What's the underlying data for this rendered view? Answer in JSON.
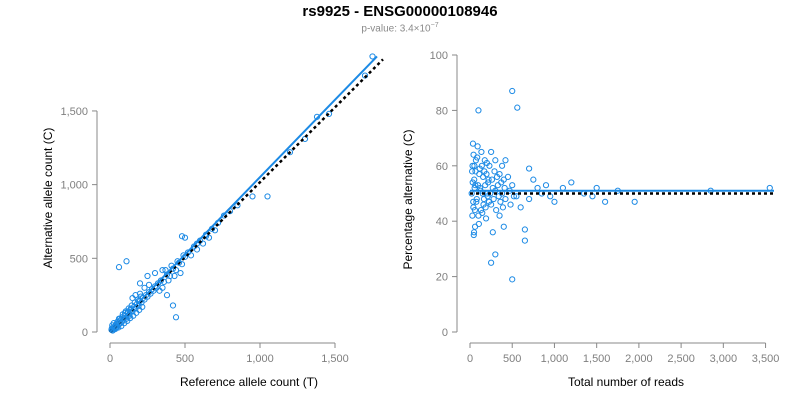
{
  "figure": {
    "title": "rs9925 - ENSG00000108946",
    "pvalue_prefix": "p-value: 3.4×10",
    "pvalue_exp": "−7"
  },
  "colors": {
    "points": "#1c8ae5",
    "fit_line": "#1c8ae5",
    "reference_line": "#000000",
    "axis": "#888888",
    "tick_text": "#7f7f7f",
    "title": "#000000",
    "subtitle": "#8a8a8a"
  },
  "chart_data": [
    {
      "type": "scatter",
      "title": "",
      "xlabel": "Reference allele count (T)",
      "ylabel": "Alternative allele count (C)",
      "xlim": [
        0,
        1800
      ],
      "ylim": [
        0,
        1900
      ],
      "xticks": [
        0,
        500,
        1000,
        1500
      ],
      "xtick_labels": [
        "0",
        "500",
        "1,000",
        "1,500"
      ],
      "yticks": [
        0,
        500,
        1000,
        1500
      ],
      "ytick_labels": [
        "0",
        "500",
        "1,000",
        "1,500"
      ],
      "grid": false,
      "fit_line": [
        [
          0,
          0
        ],
        [
          1780,
          1870
        ]
      ],
      "reference_line": [
        [
          0,
          0
        ],
        [
          1820,
          1850
        ]
      ],
      "points": [
        [
          20,
          20
        ],
        [
          30,
          35
        ],
        [
          40,
          28
        ],
        [
          45,
          50
        ],
        [
          60,
          55
        ],
        [
          70,
          80
        ],
        [
          80,
          70
        ],
        [
          90,
          95
        ],
        [
          100,
          110
        ],
        [
          110,
          100
        ],
        [
          120,
          130
        ],
        [
          130,
          120
        ],
        [
          140,
          150
        ],
        [
          150,
          140
        ],
        [
          160,
          170
        ],
        [
          170,
          160
        ],
        [
          180,
          190
        ],
        [
          190,
          175
        ],
        [
          200,
          210
        ],
        [
          210,
          200
        ],
        [
          220,
          230
        ],
        [
          230,
          220
        ],
        [
          240,
          250
        ],
        [
          250,
          240
        ],
        [
          260,
          270
        ],
        [
          270,
          260
        ],
        [
          280,
          290
        ],
        [
          290,
          280
        ],
        [
          300,
          310
        ],
        [
          310,
          300
        ],
        [
          15,
          45
        ],
        [
          25,
          60
        ],
        [
          35,
          20
        ],
        [
          55,
          30
        ],
        [
          65,
          90
        ],
        [
          75,
          40
        ],
        [
          85,
          120
        ],
        [
          95,
          60
        ],
        [
          105,
          140
        ],
        [
          115,
          75
        ],
        [
          125,
          160
        ],
        [
          135,
          95
        ],
        [
          145,
          180
        ],
        [
          155,
          110
        ],
        [
          165,
          200
        ],
        [
          175,
          130
        ],
        [
          185,
          220
        ],
        [
          195,
          150
        ],
        [
          205,
          240
        ],
        [
          215,
          170
        ],
        [
          50,
          70
        ],
        [
          60,
          90
        ],
        [
          70,
          60
        ],
        [
          80,
          100
        ],
        [
          90,
          85
        ],
        [
          100,
          130
        ],
        [
          110,
          90
        ],
        [
          120,
          140
        ],
        [
          130,
          110
        ],
        [
          140,
          160
        ],
        [
          10,
          15
        ],
        [
          12,
          25
        ],
        [
          18,
          10
        ],
        [
          22,
          30
        ],
        [
          28,
          18
        ],
        [
          33,
          40
        ],
        [
          38,
          26
        ],
        [
          42,
          55
        ],
        [
          48,
          35
        ],
        [
          52,
          60
        ],
        [
          320,
          330
        ],
        [
          340,
          350
        ],
        [
          360,
          340
        ],
        [
          380,
          390
        ],
        [
          400,
          380
        ],
        [
          420,
          430
        ],
        [
          440,
          420
        ],
        [
          460,
          470
        ],
        [
          480,
          460
        ],
        [
          500,
          510
        ],
        [
          330,
          280
        ],
        [
          350,
          300
        ],
        [
          370,
          420
        ],
        [
          390,
          350
        ],
        [
          410,
          450
        ],
        [
          430,
          380
        ],
        [
          450,
          480
        ],
        [
          470,
          400
        ],
        [
          490,
          520
        ],
        [
          350,
          420
        ],
        [
          520,
          540
        ],
        [
          540,
          520
        ],
        [
          560,
          580
        ],
        [
          580,
          560
        ],
        [
          600,
          620
        ],
        [
          620,
          600
        ],
        [
          640,
          660
        ],
        [
          660,
          640
        ],
        [
          680,
          700
        ],
        [
          700,
          690
        ],
        [
          60,
          440
        ],
        [
          110,
          480
        ],
        [
          380,
          250
        ],
        [
          420,
          180
        ],
        [
          440,
          100
        ],
        [
          250,
          380
        ],
        [
          300,
          400
        ],
        [
          200,
          330
        ],
        [
          480,
          650
        ],
        [
          500,
          640
        ],
        [
          580,
          600
        ],
        [
          640,
          650
        ],
        [
          720,
          740
        ],
        [
          760,
          790
        ],
        [
          800,
          820
        ],
        [
          850,
          860
        ],
        [
          950,
          920
        ],
        [
          1050,
          920
        ],
        [
          1200,
          1220
        ],
        [
          1300,
          1310
        ],
        [
          1380,
          1460
        ],
        [
          1460,
          1480
        ],
        [
          1700,
          1740
        ],
        [
          1750,
          1870
        ],
        [
          200,
          260
        ],
        [
          230,
          300
        ],
        [
          260,
          320
        ],
        [
          150,
          230
        ],
        [
          170,
          250
        ],
        [
          190,
          210
        ]
      ]
    },
    {
      "type": "scatter",
      "title": "",
      "xlabel": "Total number of reads",
      "ylabel": "Percentage alternative (C)",
      "xlim": [
        0,
        3600
      ],
      "ylim": [
        0,
        100
      ],
      "xticks": [
        0,
        500,
        1000,
        1500,
        2000,
        2500,
        3000,
        3500
      ],
      "xtick_labels": [
        "0",
        "500",
        "1,000",
        "1,500",
        "2,000",
        "2,500",
        "3,000",
        "3,500"
      ],
      "yticks": [
        0,
        20,
        40,
        60,
        80,
        100
      ],
      "ytick_labels": [
        "0",
        "20",
        "40",
        "60",
        "80",
        "100"
      ],
      "grid": false,
      "fit_line": [
        [
          0,
          51
        ],
        [
          3600,
          51
        ]
      ],
      "reference_line": [
        [
          0,
          50
        ],
        [
          3600,
          50
        ]
      ],
      "points": [
        [
          30,
          60
        ],
        [
          40,
          45
        ],
        [
          50,
          55
        ],
        [
          60,
          38
        ],
        [
          70,
          62
        ],
        [
          80,
          48
        ],
        [
          90,
          67
        ],
        [
          100,
          42
        ],
        [
          110,
          57
        ],
        [
          120,
          52
        ],
        [
          130,
          44
        ],
        [
          140,
          60
        ],
        [
          150,
          50
        ],
        [
          160,
          46
        ],
        [
          170,
          58
        ],
        [
          180,
          53
        ],
        [
          190,
          41
        ],
        [
          200,
          61
        ],
        [
          210,
          49
        ],
        [
          220,
          55
        ],
        [
          35,
          68
        ],
        [
          45,
          35
        ],
        [
          55,
          52
        ],
        [
          65,
          58
        ],
        [
          75,
          47
        ],
        [
          85,
          63
        ],
        [
          95,
          53
        ],
        [
          105,
          39
        ],
        [
          115,
          59
        ],
        [
          125,
          51
        ],
        [
          135,
          65
        ],
        [
          145,
          43
        ],
        [
          155,
          56
        ],
        [
          165,
          48
        ],
        [
          175,
          62
        ],
        [
          185,
          45
        ],
        [
          195,
          57
        ],
        [
          205,
          50
        ],
        [
          215,
          54
        ],
        [
          225,
          47
        ],
        [
          230,
          60
        ],
        [
          240,
          50
        ],
        [
          250,
          46
        ],
        [
          260,
          55
        ],
        [
          270,
          52
        ],
        [
          280,
          48
        ],
        [
          290,
          58
        ],
        [
          300,
          51
        ],
        [
          310,
          44
        ],
        [
          320,
          56
        ],
        [
          330,
          53
        ],
        [
          340,
          49
        ],
        [
          350,
          57
        ],
        [
          360,
          47
        ],
        [
          370,
          54
        ],
        [
          380,
          50
        ],
        [
          390,
          45
        ],
        [
          400,
          55
        ],
        [
          410,
          52
        ],
        [
          420,
          48
        ],
        [
          20,
          50
        ],
        [
          25,
          58
        ],
        [
          28,
          42
        ],
        [
          32,
          54
        ],
        [
          38,
          47
        ],
        [
          42,
          64
        ],
        [
          48,
          36
        ],
        [
          52,
          60
        ],
        [
          58,
          44
        ],
        [
          62,
          53
        ],
        [
          250,
          65
        ],
        [
          270,
          36
        ],
        [
          300,
          62
        ],
        [
          350,
          42
        ],
        [
          380,
          60
        ],
        [
          400,
          38
        ],
        [
          450,
          56
        ],
        [
          480,
          46
        ],
        [
          500,
          53
        ],
        [
          520,
          49
        ],
        [
          100,
          80
        ],
        [
          500,
          87
        ],
        [
          560,
          81
        ],
        [
          300,
          28
        ],
        [
          250,
          25
        ],
        [
          500,
          19
        ],
        [
          650,
          33
        ],
        [
          420,
          62
        ],
        [
          600,
          45
        ],
        [
          700,
          48
        ],
        [
          750,
          55
        ],
        [
          800,
          52
        ],
        [
          850,
          50
        ],
        [
          900,
          53
        ],
        [
          950,
          49
        ],
        [
          1000,
          47
        ],
        [
          1100,
          52
        ],
        [
          1200,
          54
        ],
        [
          1350,
          50
        ],
        [
          1450,
          49
        ],
        [
          1500,
          52
        ],
        [
          1600,
          47
        ],
        [
          1750,
          51
        ],
        [
          1950,
          47
        ],
        [
          2850,
          51
        ],
        [
          3550,
          52
        ],
        [
          700,
          59
        ],
        [
          650,
          37
        ],
        [
          550,
          49
        ],
        [
          470,
          51
        ]
      ]
    }
  ]
}
